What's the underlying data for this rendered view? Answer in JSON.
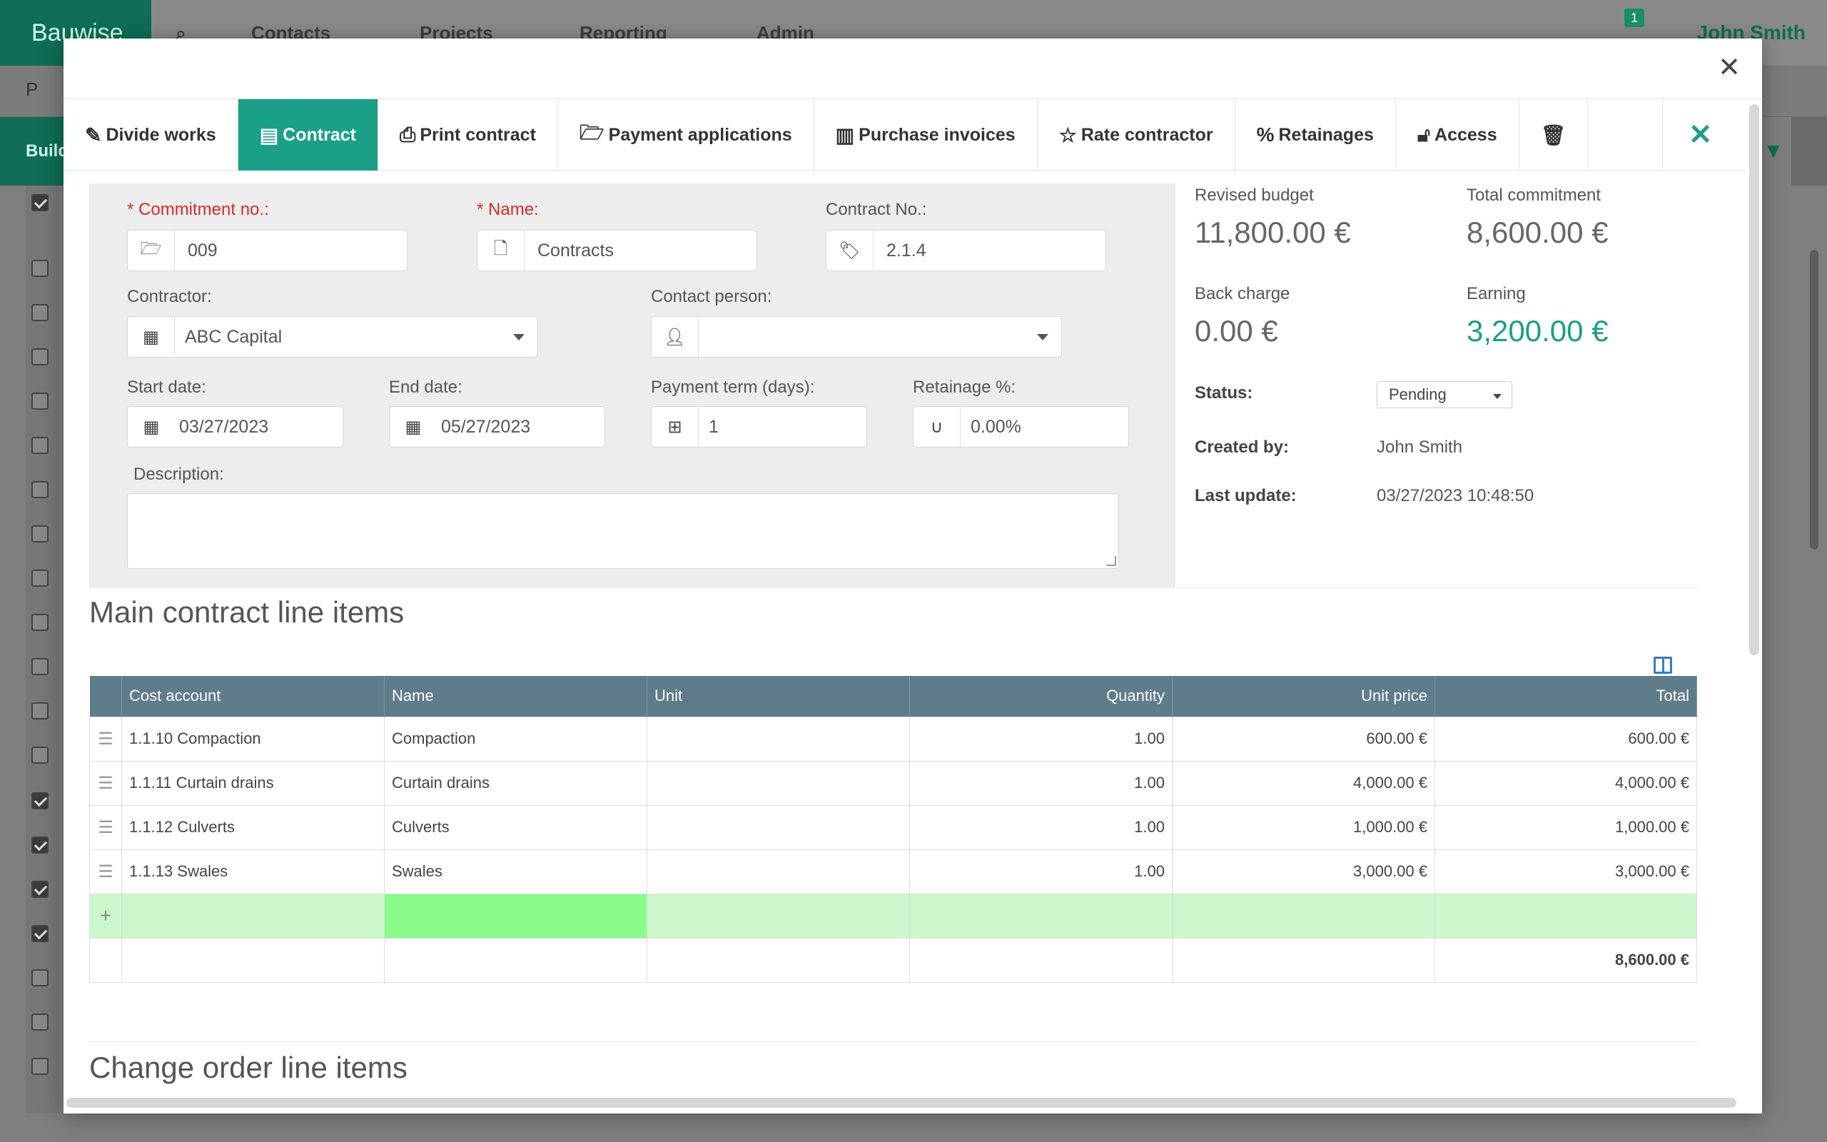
{
  "background": {
    "brand": "Bauwise",
    "nav": [
      "Contacts",
      "Projects",
      "Reporting",
      "Admin"
    ],
    "user": "John Smith",
    "notification_count": "1",
    "subbar_label": "P",
    "green_label": "Build"
  },
  "tabs": [
    {
      "label": "Divide works",
      "icon": "pencil-icon"
    },
    {
      "label": "Contract",
      "icon": "archive-icon"
    },
    {
      "label": "Print contract",
      "icon": "printer-icon"
    },
    {
      "label": "Payment applications",
      "icon": "folder-open-icon"
    },
    {
      "label": "Purchase invoices",
      "icon": "book-icon"
    },
    {
      "label": "Rate contractor",
      "icon": "star-icon"
    },
    {
      "label": "Retainages",
      "icon": "percent-icon"
    },
    {
      "label": "Access",
      "icon": "unlock-icon"
    }
  ],
  "form": {
    "commitment_no": {
      "label": "Commitment no.:",
      "value": "009"
    },
    "name": {
      "label": "Name:",
      "value": "Contracts"
    },
    "contract_no": {
      "label": "Contract No.:",
      "value": "2.1.4"
    },
    "contractor": {
      "label": "Contractor:",
      "value": "ABC Capital"
    },
    "contact_person": {
      "label": "Contact person:",
      "value": ""
    },
    "start_date": {
      "label": "Start date:",
      "value": "03/27/2023"
    },
    "end_date": {
      "label": "End date:",
      "value": "05/27/2023"
    },
    "payment_term": {
      "label": "Payment term (days):",
      "value": "1"
    },
    "retainage": {
      "label": "Retainage %:",
      "value": "0.00%"
    },
    "description": {
      "label": "Description:",
      "value": ""
    }
  },
  "summary": {
    "revised_budget": {
      "label": "Revised budget",
      "value": "11,800.00 €"
    },
    "total_commitment": {
      "label": "Total commitment",
      "value": "8,600.00 €"
    },
    "back_charge": {
      "label": "Back charge",
      "value": "0.00 €"
    },
    "earning": {
      "label": "Earning",
      "value": "3,200.00 €"
    },
    "status": {
      "label": "Status:",
      "value": "Pending"
    },
    "created_by": {
      "label": "Created by:",
      "value": "John Smith"
    },
    "last_update": {
      "label": "Last update:",
      "value": "03/27/2023 10:48:50"
    }
  },
  "main_section": {
    "title": "Main contract line items",
    "columns": [
      "Cost account",
      "Name",
      "Unit",
      "Quantity",
      "Unit price",
      "Total"
    ],
    "rows": [
      {
        "cost_account": "1.1.10 Compaction",
        "name": "Compaction",
        "unit": "",
        "quantity": "1.00",
        "unit_price": "600.00 €",
        "total": "600.00 €"
      },
      {
        "cost_account": "1.1.11 Curtain drains",
        "name": "Curtain drains",
        "unit": "",
        "quantity": "1.00",
        "unit_price": "4,000.00 €",
        "total": "4,000.00 €"
      },
      {
        "cost_account": "1.1.12 Culverts",
        "name": "Culverts",
        "unit": "",
        "quantity": "1.00",
        "unit_price": "1,000.00 €",
        "total": "1,000.00 €"
      },
      {
        "cost_account": "1.1.13 Swales",
        "name": "Swales",
        "unit": "",
        "quantity": "1.00",
        "unit_price": "3,000.00 €",
        "total": "3,000.00 €"
      }
    ],
    "grand_total": "8,600.00 €"
  },
  "change_section": {
    "title": "Change order line items"
  },
  "colors": {
    "accent": "#1aa085",
    "header_bg": "#5f7c8a",
    "required": "#d62b2b",
    "new_row": "#ccf7cc",
    "new_row_active": "#88fb88"
  }
}
